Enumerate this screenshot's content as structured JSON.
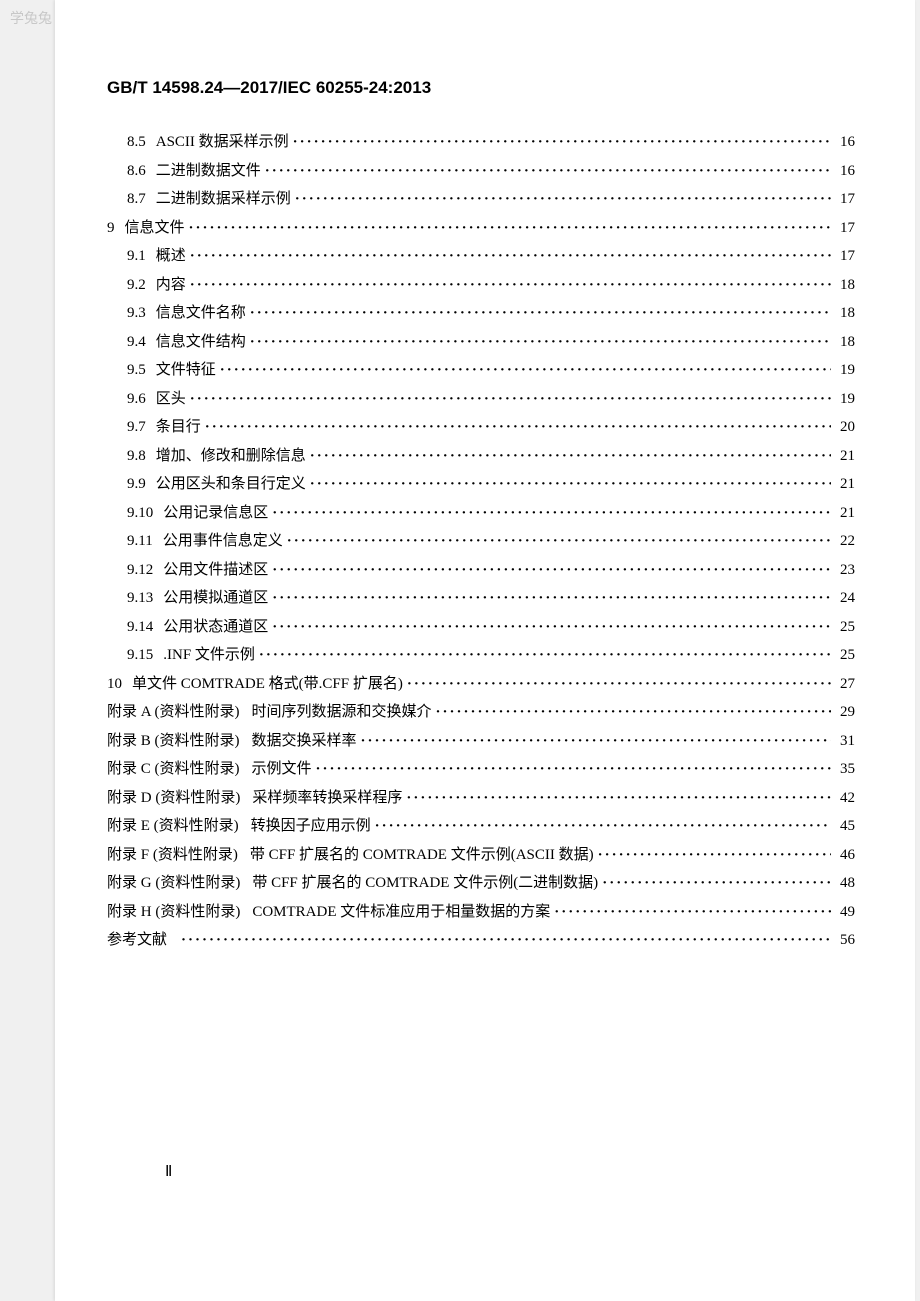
{
  "watermark": "学兔兔 www.bzfxw.com",
  "header": "GB/T 14598.24—2017/IEC 60255-24:2013",
  "toc": [
    {
      "num": "8.5",
      "indent": 1,
      "title": "ASCII 数据采样示例",
      "page": "16"
    },
    {
      "num": "8.6",
      "indent": 1,
      "title": "二进制数据文件",
      "page": "16"
    },
    {
      "num": "8.7",
      "indent": 1,
      "title": "二进制数据采样示例",
      "page": "17"
    },
    {
      "num": "9",
      "indent": 0,
      "title": "信息文件",
      "page": "17"
    },
    {
      "num": "9.1",
      "indent": 1,
      "title": "概述",
      "page": "17"
    },
    {
      "num": "9.2",
      "indent": 1,
      "title": "内容",
      "page": "18"
    },
    {
      "num": "9.3",
      "indent": 1,
      "title": "信息文件名称",
      "page": "18"
    },
    {
      "num": "9.4",
      "indent": 1,
      "title": "信息文件结构",
      "page": "18"
    },
    {
      "num": "9.5",
      "indent": 1,
      "title": "文件特征",
      "page": "19"
    },
    {
      "num": "9.6",
      "indent": 1,
      "title": "区头",
      "page": "19"
    },
    {
      "num": "9.7",
      "indent": 1,
      "title": "条目行",
      "page": "20"
    },
    {
      "num": "9.8",
      "indent": 1,
      "title": "增加、修改和删除信息",
      "page": "21"
    },
    {
      "num": "9.9",
      "indent": 1,
      "title": "公用区头和条目行定义",
      "page": "21"
    },
    {
      "num": "9.10",
      "indent": 1,
      "title": "公用记录信息区",
      "page": "21"
    },
    {
      "num": "9.11",
      "indent": 1,
      "title": "公用事件信息定义",
      "page": "22"
    },
    {
      "num": "9.12",
      "indent": 1,
      "title": "公用文件描述区",
      "page": "23"
    },
    {
      "num": "9.13",
      "indent": 1,
      "title": "公用模拟通道区",
      "page": "24"
    },
    {
      "num": "9.14",
      "indent": 1,
      "title": "公用状态通道区",
      "page": "25"
    },
    {
      "num": "9.15",
      "indent": 1,
      "title": ".INF 文件示例",
      "page": "25"
    },
    {
      "num": "10",
      "indent": 0,
      "title": "单文件 COMTRADE 格式(带.CFF 扩展名)",
      "page": "27"
    },
    {
      "num": "附录 A (资料性附录)",
      "indent": 0,
      "title": "时间序列数据源和交换媒介",
      "page": "29",
      "appendix": true
    },
    {
      "num": "附录 B (资料性附录)",
      "indent": 0,
      "title": "数据交换采样率",
      "page": "31",
      "appendix": true
    },
    {
      "num": "附录 C (资料性附录)",
      "indent": 0,
      "title": "示例文件",
      "page": "35",
      "appendix": true
    },
    {
      "num": "附录 D (资料性附录)",
      "indent": 0,
      "title": "采样频率转换采样程序",
      "page": "42",
      "appendix": true
    },
    {
      "num": "附录 E (资料性附录)",
      "indent": 0,
      "title": "转换因子应用示例",
      "page": "45",
      "appendix": true
    },
    {
      "num": "附录 F (资料性附录)",
      "indent": 0,
      "title": "带 CFF 扩展名的 COMTRADE 文件示例(ASCII 数据)",
      "page": "46",
      "appendix": true
    },
    {
      "num": "附录 G (资料性附录)",
      "indent": 0,
      "title": "带 CFF 扩展名的 COMTRADE 文件示例(二进制数据)",
      "page": "48",
      "appendix": true
    },
    {
      "num": "附录 H (资料性附录)",
      "indent": 0,
      "title": "COMTRADE 文件标准应用于相量数据的方案",
      "page": "49",
      "appendix": true
    },
    {
      "num": "参考文献",
      "indent": 0,
      "title": "",
      "page": "56"
    }
  ],
  "pageNumber": "Ⅱ"
}
